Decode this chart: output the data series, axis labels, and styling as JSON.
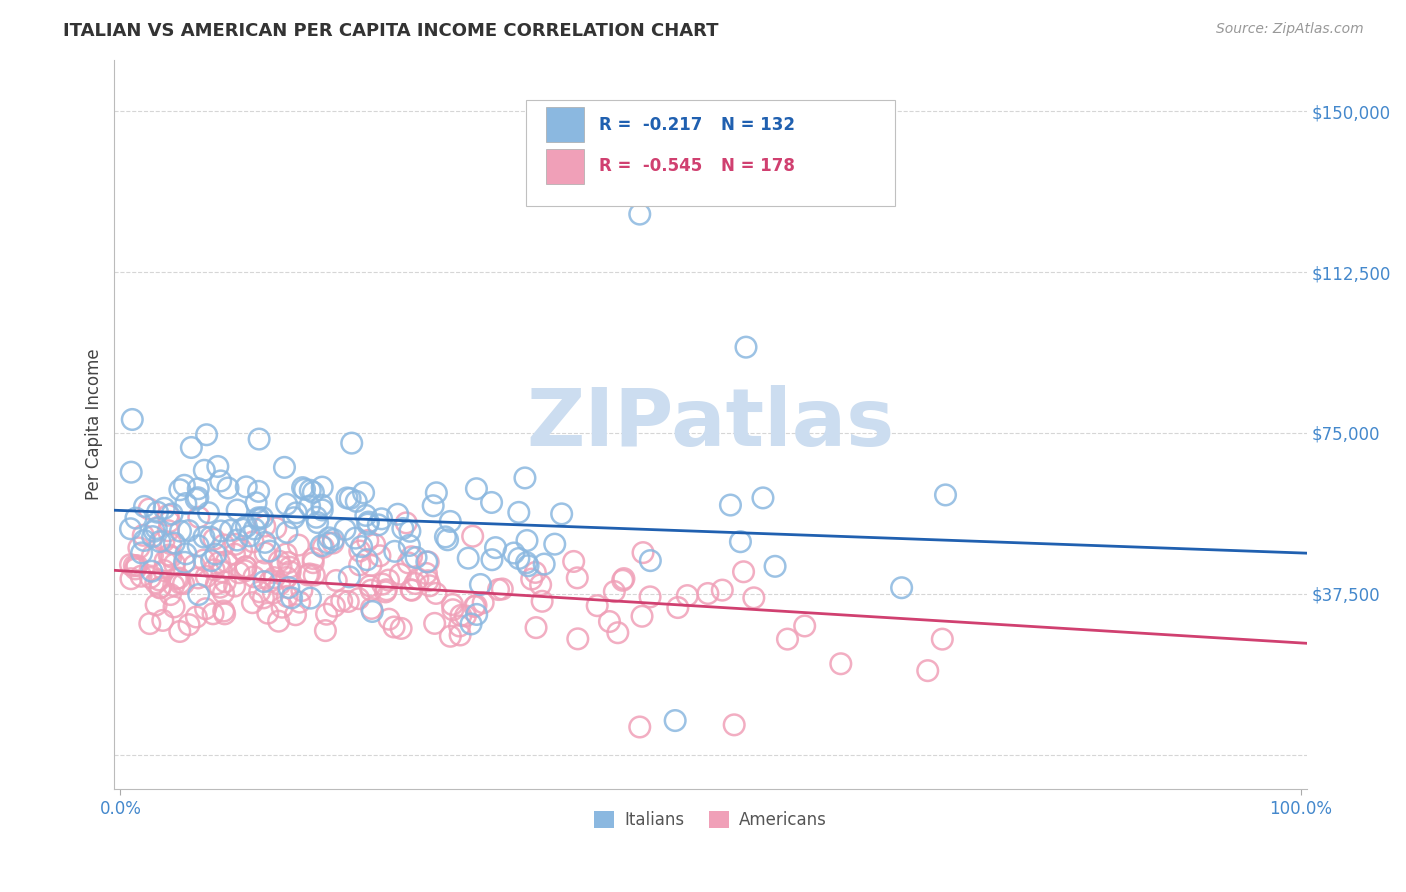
{
  "title": "ITALIAN VS AMERICAN PER CAPITA INCOME CORRELATION CHART",
  "source_text": "Source: ZipAtlas.com",
  "ylabel": "Per Capita Income",
  "y_ticks": [
    0,
    37500,
    75000,
    112500,
    150000
  ],
  "y_tick_labels": [
    "",
    "$37,500",
    "$75,000",
    "$112,500",
    "$150,000"
  ],
  "y_min": -8000,
  "y_max": 162000,
  "x_min": -0.005,
  "x_max": 1.005,
  "italian_color": "#8BB8E0",
  "american_color": "#F0A0B8",
  "italian_line_color": "#2060B0",
  "american_line_color": "#D04070",
  "italian_R": "-0.217",
  "italian_N": "132",
  "american_R": "-0.545",
  "american_N": "178",
  "legend_label_italian": "Italians",
  "legend_label_american": "Americans",
  "background_color": "#ffffff",
  "grid_color": "#cccccc",
  "title_color": "#333333",
  "axis_label_color": "#4488cc",
  "watermark_color": "#ccddf0",
  "seed": 42,
  "it_line_y0": 57000,
  "it_line_y1": 47000,
  "am_line_y0": 43000,
  "am_line_y1": 26000
}
